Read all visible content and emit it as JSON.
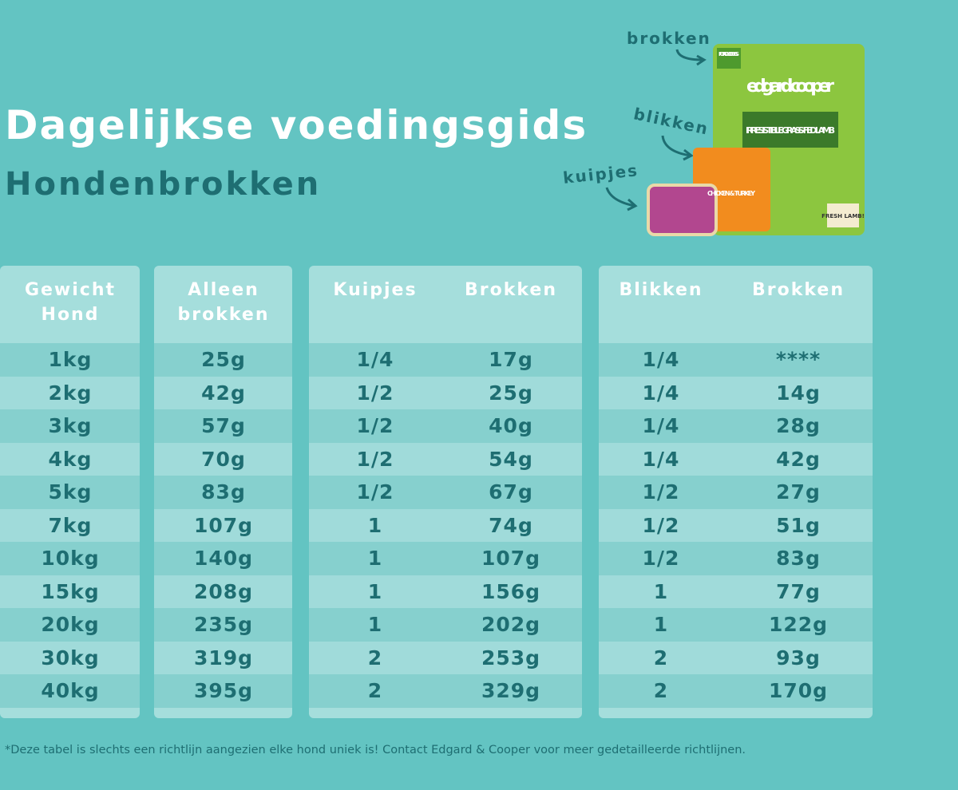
{
  "title": "Dagelijkse voedingsgids",
  "subtitle": "Hondenbrokken",
  "product_labels": {
    "dry": "brokken",
    "can": "blikken",
    "tray": "kuipjes"
  },
  "packaging": {
    "bag_badge": "FOR ADULT DOGS",
    "brand": "edgard cooper",
    "bag_flavour": "IRRESISTIBLE GRASS-FED LAMB",
    "bag_sticker": "FRESH LAMB!",
    "can_flavour": "CHICKEN & TURKEY"
  },
  "table": {
    "headers": [
      "Gewicht Hond",
      "Alleen brokken",
      "Kuipjes",
      "Brokken",
      "Blikken",
      "Brokken"
    ],
    "rows": [
      [
        "1kg",
        "25g",
        "1/4",
        "17g",
        "1/4",
        "****"
      ],
      [
        "2kg",
        "42g",
        "1/2",
        "25g",
        "1/4",
        "14g"
      ],
      [
        "3kg",
        "57g",
        "1/2",
        "40g",
        "1/4",
        "28g"
      ],
      [
        "4kg",
        "70g",
        "1/2",
        "54g",
        "1/4",
        "42g"
      ],
      [
        "5kg",
        "83g",
        "1/2",
        "67g",
        "1/2",
        "27g"
      ],
      [
        "7kg",
        "107g",
        "1",
        "74g",
        "1/2",
        "51g"
      ],
      [
        "10kg",
        "140g",
        "1",
        "107g",
        "1/2",
        "83g"
      ],
      [
        "15kg",
        "208g",
        "1",
        "156g",
        "1",
        "77g"
      ],
      [
        "20kg",
        "235g",
        "1",
        "202g",
        "1",
        "122g"
      ],
      [
        "30kg",
        "319g",
        "2",
        "253g",
        "2",
        "93g"
      ],
      [
        "40kg",
        "395g",
        "2",
        "329g",
        "2",
        "170g"
      ]
    ]
  },
  "footnote": "*Deze tabel is slechts een richtlijn aangezien elke hond uniek is! Contact Edgard & Cooper voor meer gedetailleerde richtlijnen."
}
